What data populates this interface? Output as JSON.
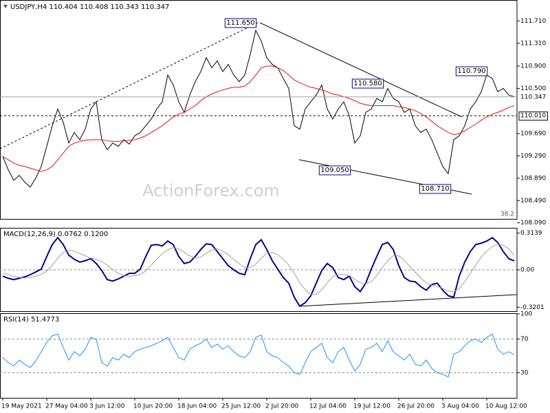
{
  "title": "USDJPY,H4  110.404 110.408 110.343 110.347",
  "watermark": "ActionForex.com",
  "chart_data": [
    {
      "type": "line",
      "series": [
        {
          "color": "#000000",
          "values": [
            109.28,
            109.04,
            108.85,
            108.94,
            108.82,
            108.73,
            108.89,
            109.1,
            109.46,
            109.83,
            110.13,
            109.89,
            109.52,
            109.71,
            109.58,
            109.77,
            110.13,
            110.26,
            109.58,
            109.4,
            109.52,
            109.46,
            109.58,
            109.5,
            109.65,
            109.71,
            109.83,
            109.95,
            110.13,
            110.26,
            110.74,
            110.56,
            110.26,
            110.07,
            110.38,
            110.62,
            110.8,
            111.05,
            110.87,
            110.99,
            110.8,
            110.93,
            110.74,
            110.62,
            110.74,
            111.11,
            111.54,
            111.35,
            111.05,
            110.93,
            110.87,
            110.68,
            110.5,
            109.83,
            109.77,
            110.13,
            110.26,
            110.38,
            110.56,
            110.13,
            109.95,
            110.13,
            110.26,
            110.01,
            109.52,
            109.65,
            110.07,
            110.13,
            110.32,
            110.26,
            110.5,
            110.32,
            110.26,
            110.07,
            110.13,
            109.83,
            109.71,
            109.77,
            109.58,
            109.34,
            109.1,
            108.97,
            109.58,
            109.65,
            109.83,
            110.13,
            110.26,
            110.44,
            110.74,
            110.68,
            110.44,
            110.5,
            110.38,
            110.35
          ]
        },
        {
          "color": "#e01010",
          "values": [
            109.28,
            109.22,
            109.16,
            109.12,
            109.1,
            109.07,
            109.04,
            109.01,
            109.04,
            109.1,
            109.22,
            109.34,
            109.46,
            109.52,
            109.55,
            109.57,
            109.58,
            109.58,
            109.58,
            109.56,
            109.55,
            109.55,
            109.56,
            109.57,
            109.58,
            109.61,
            109.65,
            109.71,
            109.77,
            109.83,
            109.91,
            109.99,
            110.04,
            110.07,
            110.13,
            110.19,
            110.28,
            110.35,
            110.4,
            110.44,
            110.47,
            110.5,
            110.52,
            110.52,
            110.54,
            110.62,
            110.74,
            110.87,
            110.9,
            110.9,
            110.87,
            110.82,
            110.74,
            110.65,
            110.6,
            110.56,
            110.52,
            110.5,
            110.47,
            110.44,
            110.4,
            110.38,
            110.35,
            110.32,
            110.28,
            110.23,
            110.21,
            110.19,
            110.19,
            110.19,
            110.19,
            110.19,
            110.17,
            110.16,
            110.13,
            110.1,
            110.05,
            109.99,
            109.91,
            109.83,
            109.77,
            109.71,
            109.67,
            109.69,
            109.74,
            109.8,
            109.86,
            109.93,
            109.99,
            110.04,
            110.07,
            110.11,
            110.16,
            110.19
          ]
        }
      ],
      "ylim": [
        108.16,
        112.06
      ],
      "yticks": [
        {
          "value": 111.71,
          "label": "111.710"
        },
        {
          "value": 111.31,
          "label": "111.310"
        },
        {
          "value": 110.9,
          "label": "110.900"
        },
        {
          "value": 110.5,
          "label": "110.500"
        },
        {
          "value": 109.69,
          "label": "109.690"
        },
        {
          "value": 109.29,
          "label": "109.290"
        },
        {
          "value": 108.89,
          "label": "108.890"
        },
        {
          "value": 108.49,
          "label": "108.490"
        },
        {
          "value": 108.09,
          "label": "108.090"
        }
      ],
      "price_levels": [
        {
          "value": 110.347,
          "label": "110.347"
        },
        {
          "value": 110.01,
          "label": "110.010"
        }
      ],
      "annotations": [
        "111.650",
        "110.580",
        "110.790",
        "109.050",
        "108.710"
      ],
      "fib_label": "38.2"
    },
    {
      "type": "line",
      "label": "MACD(12,26,9) 0.0762 0.1200",
      "series": [
        {
          "color": "#00008b",
          "values": [
            -0.054,
            -0.072,
            -0.084,
            -0.072,
            -0.06,
            -0.042,
            -0.018,
            0.006,
            0.114,
            0.216,
            0.275,
            0.216,
            0.126,
            0.09,
            0.066,
            0.078,
            0.096,
            0.054,
            -0.006,
            -0.084,
            -0.096,
            -0.078,
            -0.054,
            -0.03,
            -0.03,
            0.006,
            0.114,
            0.21,
            0.216,
            0.204,
            0.246,
            0.216,
            0.114,
            0.054,
            0.066,
            0.114,
            0.174,
            0.222,
            0.216,
            0.156,
            0.096,
            0.036,
            0,
            -0.03,
            -0.042,
            0.096,
            0.216,
            0.257,
            0.174,
            0.078,
            0.006,
            -0.066,
            -0.114,
            -0.234,
            -0.311,
            -0.281,
            -0.222,
            -0.114,
            -0.006,
            0.054,
            0.018,
            -0.066,
            -0.084,
            -0.054,
            -0.144,
            -0.186,
            -0.114,
            0.006,
            0.114,
            0.216,
            0.234,
            0.174,
            0.036,
            -0.066,
            -0.096,
            -0.102,
            -0.144,
            -0.174,
            -0.126,
            -0.114,
            -0.174,
            -0.222,
            -0.234,
            -0.054,
            0.066,
            0.156,
            0.216,
            0.228,
            0.246,
            0.275,
            0.234,
            0.156,
            0.096,
            0.076
          ]
        },
        {
          "color": "#a0a0a0",
          "values": [
            -0.03,
            -0.04,
            -0.055,
            -0.065,
            -0.07,
            -0.065,
            -0.055,
            -0.04,
            -0.01,
            0.04,
            0.1,
            0.15,
            0.17,
            0.16,
            0.14,
            0.12,
            0.1,
            0.09,
            0.07,
            0.04,
            0.0,
            -0.03,
            -0.05,
            -0.055,
            -0.05,
            -0.04,
            -0.01,
            0.04,
            0.09,
            0.14,
            0.17,
            0.19,
            0.18,
            0.15,
            0.12,
            0.1,
            0.11,
            0.14,
            0.17,
            0.18,
            0.16,
            0.13,
            0.09,
            0.05,
            0.02,
            0.02,
            0.05,
            0.1,
            0.14,
            0.15,
            0.13,
            0.09,
            0.04,
            -0.03,
            -0.11,
            -0.17,
            -0.21,
            -0.21,
            -0.17,
            -0.11,
            -0.06,
            -0.04,
            -0.04,
            -0.05,
            -0.08,
            -0.11,
            -0.12,
            -0.1,
            -0.05,
            0.02,
            0.08,
            0.12,
            0.12,
            0.08,
            0.03,
            -0.02,
            -0.07,
            -0.11,
            -0.13,
            -0.14,
            -0.16,
            -0.18,
            -0.19,
            -0.16,
            -0.1,
            -0.03,
            0.04,
            0.11,
            0.16,
            0.2,
            0.22,
            0.21,
            0.18,
            0.12
          ]
        }
      ],
      "ylim": [
        -0.353,
        0.353
      ],
      "yticks": [
        0.3139,
        {
          "value": 0,
          "label": "0.00"
        },
        -0.3201
      ],
      "levels": [
        0
      ]
    },
    {
      "type": "line",
      "label": "RSI(14) 51.4773",
      "categories": [
        "19 May 2021",
        null,
        null,
        null,
        null,
        null,
        null,
        null,
        "27 May 04:00",
        null,
        null,
        null,
        null,
        null,
        null,
        null,
        "3 Jun 12:00",
        null,
        null,
        null,
        null,
        null,
        null,
        null,
        "10 Jun 20:00",
        null,
        null,
        null,
        null,
        null,
        null,
        null,
        "18 Jun 04:00",
        null,
        null,
        null,
        null,
        null,
        null,
        null,
        "25 Jun 12:00",
        null,
        null,
        null,
        null,
        null,
        null,
        null,
        "2 Jul 20:00",
        null,
        null,
        null,
        null,
        null,
        null,
        null,
        "12 Jul 04:00",
        null,
        null,
        null,
        null,
        null,
        null,
        null,
        "19 Jul 12:00",
        null,
        null,
        null,
        null,
        null,
        null,
        null,
        "26 Jul 20:00",
        null,
        null,
        null,
        null,
        null,
        null,
        null,
        "3 Aug 04:00",
        null,
        null,
        null,
        null,
        null,
        null,
        null,
        "10 Aug 12:00",
        null,
        null,
        null,
        null,
        null
      ],
      "series": [
        {
          "color": "#1e90ff",
          "values": [
            48,
            42,
            38,
            45,
            40,
            36,
            44,
            55,
            66,
            74,
            76,
            60,
            45,
            55,
            50,
            58,
            72,
            70,
            42,
            38,
            48,
            45,
            52,
            48,
            55,
            58,
            60,
            62,
            65,
            68,
            72,
            60,
            48,
            45,
            58,
            62,
            65,
            70,
            60,
            64,
            58,
            62,
            55,
            50,
            48,
            55,
            72,
            75,
            55,
            50,
            48,
            42,
            38,
            30,
            28,
            42,
            55,
            60,
            65,
            48,
            42,
            55,
            60,
            45,
            32,
            40,
            58,
            60,
            65,
            55,
            68,
            55,
            50,
            45,
            52,
            40,
            38,
            45,
            35,
            30,
            28,
            25,
            52,
            55,
            62,
            68,
            70,
            66,
            72,
            76,
            58,
            52,
            55,
            51.48
          ]
        }
      ],
      "ylim": [
        0,
        100
      ],
      "yticks": [
        100,
        70,
        30
      ],
      "levels": [
        70,
        30
      ]
    }
  ]
}
